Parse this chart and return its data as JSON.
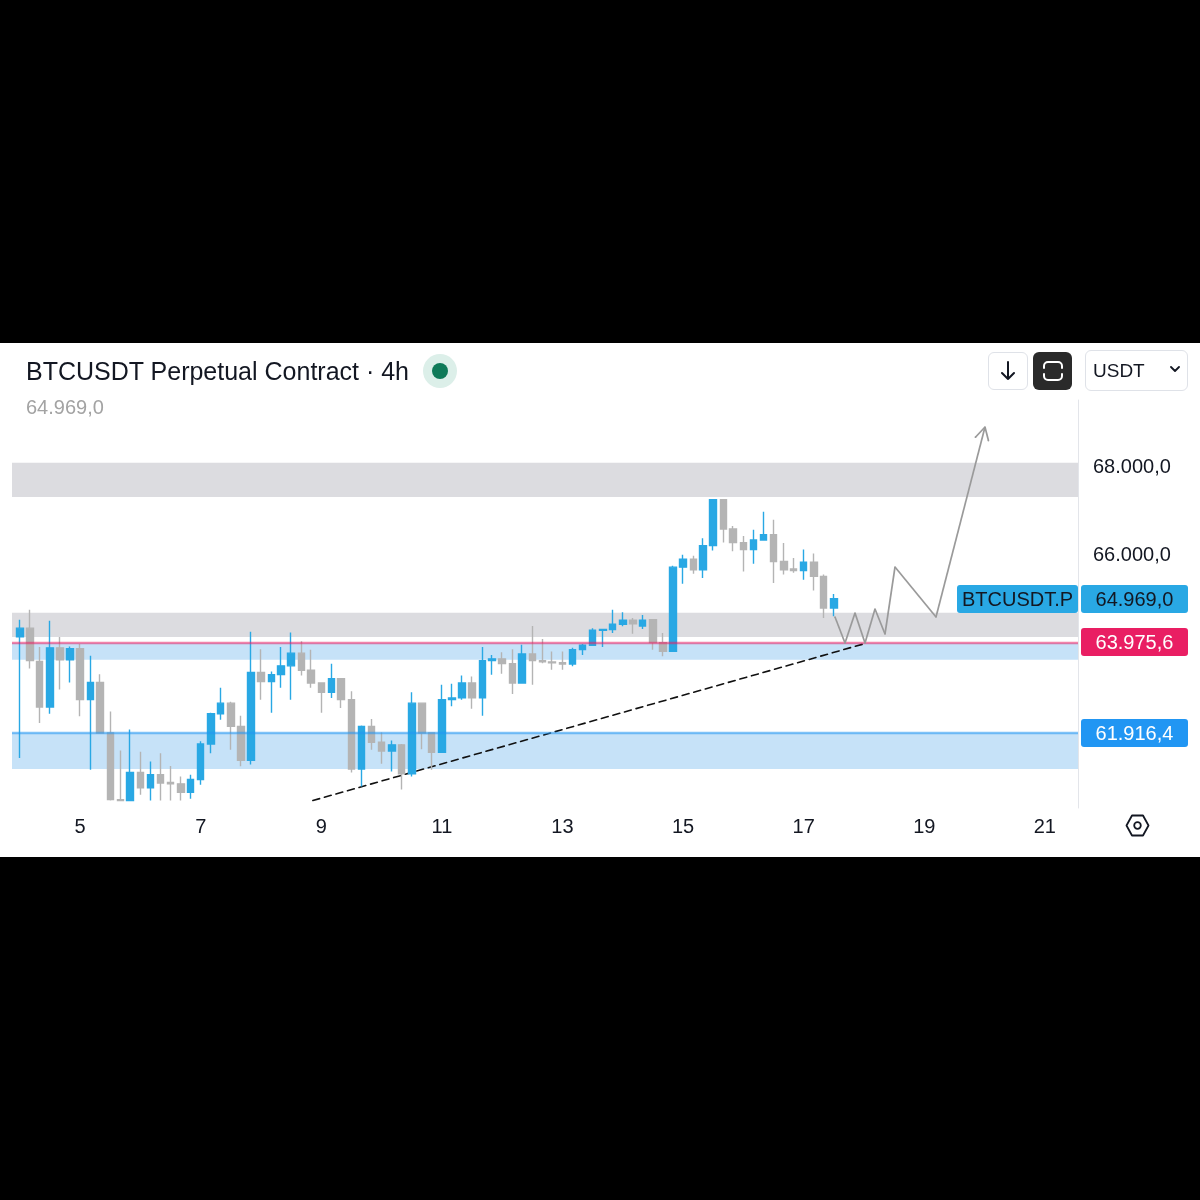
{
  "chart_data": {
    "type": "candlestick",
    "title": "BTCUSDT Perpetual Contract · 4h",
    "subtitle": "64.969,0",
    "annotations": [
      "USDT"
    ],
    "xlim": [
      3.87,
      21.55
    ],
    "xticks": [
      5,
      7,
      9,
      11,
      13,
      15,
      17,
      19,
      21
    ],
    "ylim": [
      60200,
      69500
    ],
    "yticks": [
      {
        "value": 66000,
        "label": "66.000,0"
      },
      {
        "value": 68000,
        "label": "68.000,0"
      }
    ],
    "bands": [
      {
        "axis": "y",
        "from": 67290,
        "to": 68070,
        "color": "#dcdce0"
      },
      {
        "axis": "y",
        "from": 64100,
        "to": 64650,
        "color": "#dcdce0"
      },
      {
        "axis": "y",
        "from": 63580,
        "to": 63960,
        "color": "#c6e2f8"
      },
      {
        "axis": "y",
        "from": 61090,
        "to": 61916.4,
        "color": "#c6e2f8"
      }
    ],
    "ref_lines": [
      {
        "axis": "y",
        "value": 63975.6,
        "label": "63.975,6",
        "color": "#e91e63"
      },
      {
        "axis": "y",
        "value": 61916.4,
        "label": "61.916,4",
        "color": "#2196f3"
      }
    ],
    "series": [
      {
        "name": "BTCUSDT.P",
        "x": [
          4,
          4.17,
          4.33,
          4.5,
          4.67,
          4.83,
          5,
          5.17,
          5.33,
          5.5,
          5.67,
          5.83,
          6,
          6.17,
          6.33,
          6.5,
          6.67,
          6.83,
          7,
          7.17,
          7.33,
          7.5,
          7.67,
          7.83,
          8,
          8.17,
          8.33,
          8.5,
          8.67,
          8.83,
          9,
          9.17,
          9.33,
          9.5,
          9.67,
          9.83,
          10,
          10.17,
          10.33,
          10.5,
          10.67,
          10.83,
          11,
          11.17,
          11.33,
          11.5,
          11.67,
          11.83,
          12,
          12.17,
          12.33,
          12.5,
          12.67,
          12.83,
          13,
          13.17,
          13.33,
          13.5,
          13.67,
          13.83,
          14,
          14.17,
          14.33,
          14.5,
          14.67,
          14.83,
          15,
          15.17,
          15.33,
          15.5,
          15.67,
          15.83,
          16,
          16.17,
          16.33,
          16.5,
          16.67,
          16.83,
          17,
          17.17,
          17.33,
          17.5
        ],
        "ohlc": [
          [
            64100,
            64490,
            61340,
            64300
          ],
          [
            64300,
            64720,
            63380,
            63560
          ],
          [
            63540,
            63870,
            62140,
            62500
          ],
          [
            62500,
            64470,
            62350,
            63850
          ],
          [
            63850,
            64100,
            62900,
            63580
          ],
          [
            63580,
            63880,
            63060,
            63830
          ],
          [
            63830,
            63940,
            62290,
            62670
          ],
          [
            62670,
            63670,
            61070,
            63060
          ],
          [
            63060,
            63250,
            61910,
            61910
          ],
          [
            61910,
            62400,
            60370,
            60390
          ],
          [
            60390,
            61510,
            60370,
            60370
          ],
          [
            60370,
            61990,
            60370,
            61010
          ],
          [
            61010,
            61480,
            60500,
            60660
          ],
          [
            60660,
            61260,
            60370,
            60960
          ],
          [
            60960,
            61450,
            60370,
            60770
          ],
          [
            60780,
            61160,
            60370,
            60750
          ],
          [
            60750,
            60920,
            60370,
            60560
          ],
          [
            60560,
            60960,
            60410,
            60850
          ],
          [
            60850,
            61720,
            60730,
            61660
          ],
          [
            61660,
            62370,
            61450,
            62350
          ],
          [
            62350,
            62940,
            62210,
            62590
          ],
          [
            62590,
            62620,
            61530,
            62060
          ],
          [
            62060,
            62300,
            61150,
            61290
          ],
          [
            61290,
            64220,
            61190,
            63290
          ],
          [
            63290,
            63820,
            62670,
            63080
          ],
          [
            63080,
            63310,
            62370,
            63240
          ],
          [
            63240,
            63870,
            62940,
            63440
          ],
          [
            63440,
            64200,
            62670,
            63730
          ],
          [
            63730,
            64000,
            63220,
            63340
          ],
          [
            63340,
            63810,
            62940,
            63050
          ],
          [
            63050,
            63060,
            62370,
            62840
          ],
          [
            62840,
            63490,
            62710,
            63150
          ],
          [
            63150,
            63160,
            62480,
            62670
          ],
          [
            62670,
            62860,
            61010,
            61090
          ],
          [
            61090,
            62080,
            60690,
            62060
          ],
          [
            62060,
            62230,
            61530,
            61700
          ],
          [
            61700,
            61920,
            61210,
            61500
          ],
          [
            61500,
            61740,
            61030,
            61640
          ],
          [
            61640,
            61660,
            60620,
            60980
          ],
          [
            60980,
            62840,
            60920,
            62590
          ],
          [
            62590,
            62600,
            61540,
            61910
          ],
          [
            61910,
            61920,
            61070,
            61470
          ],
          [
            61470,
            63010,
            61460,
            62670
          ],
          [
            62670,
            63030,
            62520,
            62710
          ],
          [
            62710,
            63220,
            62670,
            63050
          ],
          [
            63050,
            63200,
            62460,
            62710
          ],
          [
            62710,
            63870,
            62300,
            63560
          ],
          [
            63560,
            63690,
            63240,
            63600
          ],
          [
            63600,
            63750,
            63260,
            63490
          ],
          [
            63490,
            63820,
            62800,
            63050
          ],
          [
            63050,
            63920,
            63040,
            63710
          ],
          [
            63710,
            64350,
            63010,
            63560
          ],
          [
            63560,
            64050,
            63500,
            63530
          ],
          [
            63530,
            63770,
            63350,
            63510
          ],
          [
            63510,
            63770,
            63350,
            63480
          ],
          [
            63480,
            63850,
            63430,
            63810
          ],
          [
            63810,
            63940,
            63690,
            63910
          ],
          [
            63910,
            64300,
            63900,
            64250
          ],
          [
            64250,
            64280,
            63870,
            64270
          ],
          [
            64270,
            64720,
            64190,
            64390
          ],
          [
            64390,
            64660,
            64340,
            64480
          ],
          [
            64480,
            64530,
            64170,
            64400
          ],
          [
            64350,
            64600,
            64280,
            64480
          ],
          [
            64490,
            64500,
            63810,
            63970
          ],
          [
            63970,
            64190,
            63660,
            63770
          ],
          [
            63770,
            65720,
            63760,
            65690
          ],
          [
            65690,
            65970,
            65310,
            65870
          ],
          [
            65870,
            65950,
            65540,
            65630
          ],
          [
            65630,
            66350,
            65440,
            66180
          ],
          [
            66180,
            67240,
            66070,
            67230
          ],
          [
            67230,
            67240,
            66250,
            66560
          ],
          [
            66560,
            66630,
            66050,
            66250
          ],
          [
            66250,
            66400,
            65590,
            66090
          ],
          [
            66090,
            66540,
            65770,
            66310
          ],
          [
            66310,
            66950,
            66300,
            66430
          ],
          [
            66430,
            66770,
            65330,
            65820
          ],
          [
            65820,
            66240,
            65520,
            65630
          ],
          [
            65650,
            65900,
            65560,
            65610
          ],
          [
            65610,
            66090,
            65400,
            65800
          ],
          [
            65800,
            66000,
            65160,
            65480
          ],
          [
            65480,
            65520,
            64530,
            64760
          ],
          [
            64760,
            65080,
            64570,
            64969
          ]
        ],
        "value_labels": [
          null,
          null,
          null,
          null,
          null,
          null,
          null,
          null,
          null,
          null,
          null,
          null,
          null,
          null,
          null,
          null,
          null,
          null,
          null,
          null,
          null,
          null,
          null,
          null,
          null,
          null,
          null,
          null,
          null,
          null,
          null,
          null,
          null,
          null,
          null,
          null,
          null,
          null,
          null,
          null,
          null,
          null,
          null,
          null,
          null,
          null,
          null,
          null,
          null,
          null,
          null,
          null,
          null,
          null,
          null,
          null,
          null,
          null,
          null,
          null,
          null,
          null,
          null,
          null,
          null,
          null,
          null,
          null,
          null,
          null,
          null,
          null,
          null,
          null,
          null,
          null,
          null,
          null,
          null,
          null,
          null,
          "64.969,0"
        ],
        "colors": [
          "#29a8e4",
          "#b4b4b4",
          "#b4b4b4",
          "#29a8e4",
          "#b4b4b4",
          "#29a8e4",
          "#b4b4b4",
          "#29a8e4",
          "#b4b4b4",
          "#b4b4b4",
          "#b4b4b4",
          "#29a8e4",
          "#b4b4b4",
          "#29a8e4",
          "#b4b4b4",
          "#b4b4b4",
          "#b4b4b4",
          "#29a8e4",
          "#29a8e4",
          "#29a8e4",
          "#29a8e4",
          "#b4b4b4",
          "#b4b4b4",
          "#29a8e4",
          "#b4b4b4",
          "#29a8e4",
          "#29a8e4",
          "#29a8e4",
          "#b4b4b4",
          "#b4b4b4",
          "#b4b4b4",
          "#29a8e4",
          "#b4b4b4",
          "#b4b4b4",
          "#29a8e4",
          "#b4b4b4",
          "#b4b4b4",
          "#29a8e4",
          "#b4b4b4",
          "#29a8e4",
          "#b4b4b4",
          "#b4b4b4",
          "#29a8e4",
          "#29a8e4",
          "#29a8e4",
          "#b4b4b4",
          "#29a8e4",
          "#29a8e4",
          "#b4b4b4",
          "#b4b4b4",
          "#29a8e4",
          "#b4b4b4",
          "#b4b4b4",
          "#b4b4b4",
          "#b4b4b4",
          "#29a8e4",
          "#29a8e4",
          "#29a8e4",
          "#29a8e4",
          "#29a8e4",
          "#29a8e4",
          "#b4b4b4",
          "#29a8e4",
          "#b4b4b4",
          "#b4b4b4",
          "#29a8e4",
          "#29a8e4",
          "#b4b4b4",
          "#29a8e4",
          "#29a8e4",
          "#b4b4b4",
          "#b4b4b4",
          "#b4b4b4",
          "#29a8e4",
          "#29a8e4",
          "#b4b4b4",
          "#b4b4b4",
          "#b4b4b4",
          "#29a8e4",
          "#b4b4b4",
          "#b4b4b4",
          "#29a8e4"
        ]
      },
      {
        "type": "line",
        "x": [
          8.86,
          18.02
        ],
        "values": [
          60370,
          63950
        ],
        "color": "#111111",
        "line_style": "dashed"
      }
    ]
  }
}
